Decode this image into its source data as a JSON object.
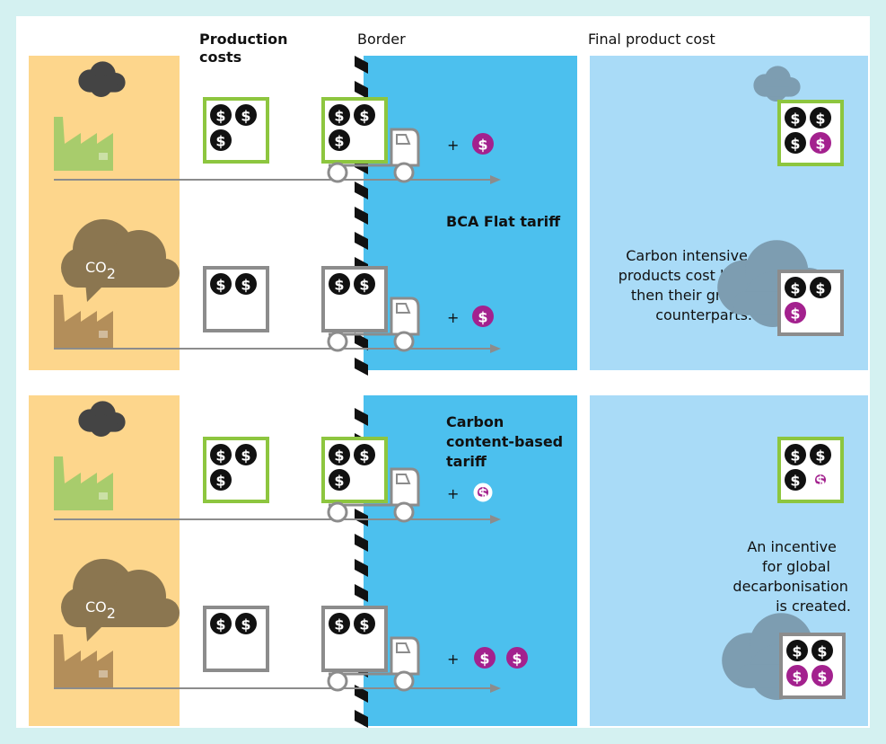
{
  "header": {
    "production_costs": [
      "Production",
      "costs"
    ],
    "border": "Border",
    "final_product_cost": "Final product cost"
  },
  "co2": {
    "main": "CO",
    "subscript": "2"
  },
  "coin_symbol": "$",
  "plus_sign": "+",
  "flat_tariff": {
    "label": "BCA Flat tariff",
    "note": [
      "Carbon intensive",
      "products cost less",
      "then their green",
      "counterparts."
    ]
  },
  "content_tariff": {
    "label": [
      "Carbon",
      "content-based",
      "tariff"
    ],
    "note": [
      "An incentive",
      "for global",
      "decarbonisation",
      "is created."
    ]
  }
}
